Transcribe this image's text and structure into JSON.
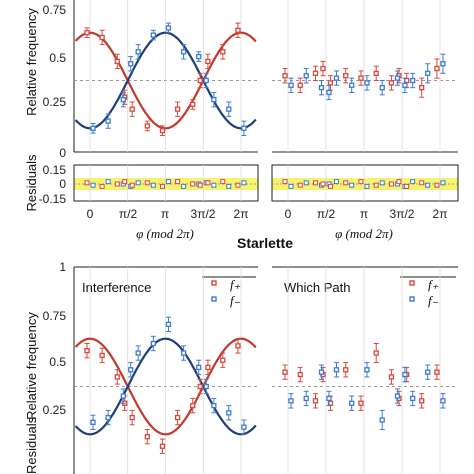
{
  "colors": {
    "f_plus": "#d9473b",
    "f_minus": "#3f7ad1",
    "fit_plus": "#c0392b",
    "fit_minus": "#1f3f77",
    "band": "#f4ef3f"
  },
  "labels": {
    "section_title": "Starlette",
    "ylabel_main": "Relative frequency",
    "ylabel_res": "Residuals",
    "xlabel": "φ (mod 2π)",
    "panel_left": "Interference",
    "panel_right": "Which Path",
    "legend_plus": "f₊",
    "legend_minus": "f₋"
  },
  "chart_data": [
    {
      "type": "scatter",
      "panel": "top-left",
      "xlim": [
        -0.6,
        6.9
      ],
      "ylim": [
        0.22,
        0.78
      ],
      "yticks": [
        "0.25",
        "0.5",
        "0.75"
      ],
      "series": [
        {
          "name": "f₊",
          "x": [
            0,
            0.63,
            1.26,
            1.57,
            1.88,
            2.51,
            3.14,
            3.77,
            4.4,
            4.71,
            5.03,
            5.65,
            6.28
          ],
          "y": [
            0.7,
            0.68,
            0.58,
            0.43,
            0.38,
            0.31,
            0.29,
            0.38,
            0.4,
            0.5,
            0.58,
            0.62,
            0.71
          ],
          "err": [
            0.02,
            0.03,
            0.03,
            0.03,
            0.03,
            0.02,
            0.02,
            0.03,
            0.02,
            0.03,
            0.03,
            0.03,
            0.03
          ]
        },
        {
          "name": "f₋",
          "x": [
            0,
            0.63,
            1.26,
            1.57,
            1.88,
            2.51,
            3.14,
            3.77,
            4.4,
            4.71,
            5.03,
            5.65,
            6.28
          ],
          "y": [
            0.3,
            0.33,
            0.42,
            0.57,
            0.62,
            0.69,
            0.72,
            0.62,
            0.6,
            0.5,
            0.42,
            0.38,
            0.3
          ],
          "err": [
            0.02,
            0.03,
            0.03,
            0.03,
            0.03,
            0.02,
            0.02,
            0.03,
            0.02,
            0.03,
            0.03,
            0.03,
            0.03
          ]
        }
      ]
    },
    {
      "type": "scatter",
      "panel": "top-right",
      "xlim": [
        -0.6,
        6.9
      ],
      "ylim": [
        0.22,
        0.78
      ],
      "series": [
        {
          "name": "f₊",
          "x": [
            0,
            0.63,
            1.26,
            1.57,
            1.88,
            2.51,
            3.14,
            3.77,
            4.4,
            4.71,
            5.03,
            5.65,
            6.28
          ],
          "y": [
            0.52,
            0.48,
            0.53,
            0.55,
            0.49,
            0.52,
            0.51,
            0.53,
            0.49,
            0.52,
            0.5,
            0.47,
            0.55
          ],
          "err": [
            0.03,
            0.03,
            0.03,
            0.03,
            0.03,
            0.03,
            0.03,
            0.03,
            0.03,
            0.03,
            0.03,
            0.04,
            0.04
          ]
        },
        {
          "name": "f₋",
          "x": [
            0,
            0.63,
            1.26,
            1.57,
            1.88,
            2.51,
            3.14,
            3.77,
            4.4,
            4.71,
            5.03,
            5.65,
            6.28
          ],
          "y": [
            0.48,
            0.52,
            0.47,
            0.45,
            0.51,
            0.48,
            0.49,
            0.47,
            0.51,
            0.48,
            0.5,
            0.53,
            0.57
          ],
          "err": [
            0.03,
            0.03,
            0.03,
            0.03,
            0.03,
            0.03,
            0.03,
            0.03,
            0.03,
            0.03,
            0.03,
            0.04,
            0.04
          ]
        }
      ]
    },
    {
      "type": "scatter",
      "panel": "bottom-left",
      "xlim": [
        -0.6,
        6.9
      ],
      "ylim": [
        0.22,
        0.78
      ],
      "series": [
        {
          "name": "f₊",
          "x": [
            0,
            0.63,
            1.26,
            1.57,
            1.88,
            2.51,
            3.14,
            3.77,
            4.4,
            4.71,
            5.03,
            5.65,
            6.28
          ],
          "y": [
            0.65,
            0.63,
            0.54,
            0.43,
            0.37,
            0.29,
            0.25,
            0.37,
            0.42,
            0.5,
            0.58,
            0.61,
            0.67
          ],
          "err": [
            0.03,
            0.03,
            0.03,
            0.03,
            0.03,
            0.03,
            0.03,
            0.03,
            0.03,
            0.03,
            0.03,
            0.03,
            0.03
          ]
        },
        {
          "name": "f₋",
          "x": [
            0,
            0.63,
            1.26,
            1.57,
            1.88,
            2.51,
            3.14,
            3.77,
            4.4,
            4.71,
            5.03,
            5.65,
            6.28
          ],
          "y": [
            0.35,
            0.37,
            0.46,
            0.57,
            0.64,
            0.68,
            0.76,
            0.64,
            0.58,
            0.5,
            0.42,
            0.39,
            0.33
          ],
          "err": [
            0.03,
            0.03,
            0.03,
            0.03,
            0.03,
            0.03,
            0.03,
            0.03,
            0.03,
            0.03,
            0.03,
            0.03,
            0.03
          ]
        }
      ]
    },
    {
      "type": "scatter",
      "panel": "bottom-right",
      "xlim": [
        -0.6,
        6.9
      ],
      "ylim": [
        0.22,
        0.78
      ],
      "series": [
        {
          "name": "f₊",
          "x": [
            0,
            0.63,
            1.26,
            1.57,
            1.88,
            2.51,
            3.14,
            3.77,
            4.4,
            4.71,
            5.03,
            5.65,
            6.28
          ],
          "y": [
            0.56,
            0.55,
            0.44,
            0.55,
            0.43,
            0.57,
            0.43,
            0.64,
            0.54,
            0.45,
            0.55,
            0.44,
            0.56
          ],
          "err": [
            0.03,
            0.03,
            0.03,
            0.03,
            0.03,
            0.03,
            0.03,
            0.04,
            0.03,
            0.03,
            0.03,
            0.03,
            0.03
          ]
        },
        {
          "name": "f₋",
          "x": [
            0,
            0.63,
            1.26,
            1.57,
            1.88,
            2.51,
            3.14,
            3.77,
            4.4,
            4.71,
            5.03,
            5.65,
            6.28
          ],
          "y": [
            0.44,
            0.45,
            0.56,
            0.45,
            0.57,
            0.43,
            0.57,
            0.36,
            0.46,
            0.55,
            0.45,
            0.56,
            0.44
          ],
          "err": [
            0.03,
            0.03,
            0.03,
            0.03,
            0.03,
            0.03,
            0.03,
            0.04,
            0.03,
            0.03,
            0.03,
            0.03,
            0.03
          ]
        }
      ]
    },
    {
      "type": "scatter",
      "panel": "residuals",
      "ylim": [
        -0.15,
        0.15
      ],
      "yticks": [
        "0.15",
        "0",
        "-0.15"
      ],
      "xticks": [
        "0",
        "π/2",
        "π",
        "3π/2",
        "2π"
      ],
      "left_res": [
        0.01,
        -0.02,
        0.0,
        0.02,
        -0.01,
        0.01,
        -0.02,
        0.02,
        0.0,
        -0.01,
        0.01,
        0.02,
        -0.01
      ],
      "right_res": [
        0.02,
        -0.01,
        0.01,
        0.0,
        -0.02,
        0.01,
        0.02,
        -0.01,
        0.0,
        0.02,
        -0.02,
        0.01,
        -0.01
      ]
    }
  ],
  "yaxis_extra_ticks": [
    "1",
    "0.75",
    "0.5",
    "0.25",
    "0"
  ]
}
